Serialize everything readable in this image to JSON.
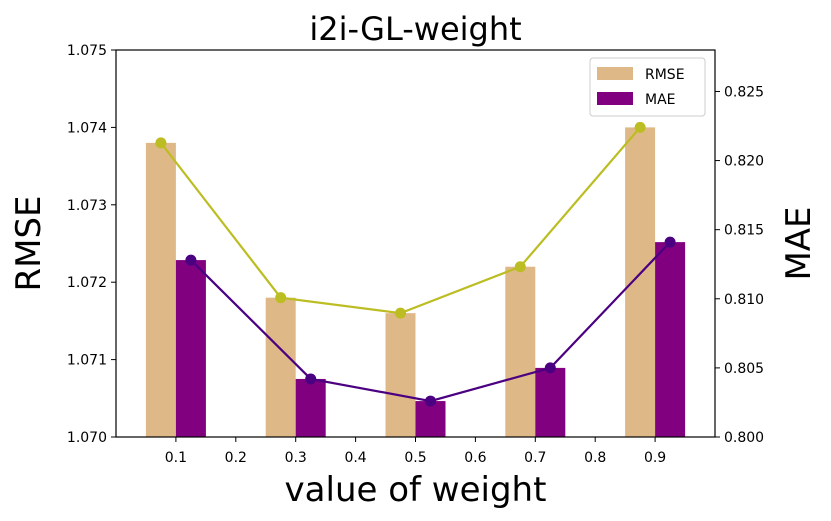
{
  "chart_data": {
    "type": "bar",
    "title": "i2i-GL-weight",
    "xlabel": "value of weight",
    "ylabel": "RMSE",
    "ylabel_right": "MAE",
    "xlim": [
      0.0,
      1.0
    ],
    "xticks": [
      0.1,
      0.2,
      0.3,
      0.4,
      0.5,
      0.6,
      0.7,
      0.8,
      0.9
    ],
    "xtick_labels": [
      "0.1",
      "0.2",
      "0.3",
      "0.4",
      "0.5",
      "0.6",
      "0.7",
      "0.8",
      "0.9"
    ],
    "ylim": [
      1.07,
      1.075
    ],
    "yticks": [
      1.07,
      1.071,
      1.072,
      1.073,
      1.074,
      1.075
    ],
    "ytick_labels": [
      "1.070",
      "1.071",
      "1.072",
      "1.073",
      "1.074",
      "1.075"
    ],
    "ylim_right": [
      0.8,
      0.828
    ],
    "yticks_right": [
      0.8,
      0.805,
      0.81,
      0.815,
      0.82,
      0.825
    ],
    "ytick_labels_right": [
      "0.800",
      "0.805",
      "0.810",
      "0.815",
      "0.820",
      "0.825"
    ],
    "categories": [
      0.1,
      0.3,
      0.5,
      0.7,
      0.9
    ],
    "series": [
      {
        "name": "RMSE",
        "axis": "left",
        "bar_color": "#deb887",
        "line_color": "#bcbd22",
        "values": [
          1.0738,
          1.0718,
          1.0716,
          1.0722,
          1.074
        ]
      },
      {
        "name": "MAE",
        "axis": "right",
        "bar_color": "#800080",
        "line_color": "#4b0082",
        "values": [
          0.8128,
          0.8042,
          0.8026,
          0.805,
          0.8141
        ]
      }
    ],
    "legend": {
      "position": "top-right",
      "entries": [
        "RMSE",
        "MAE"
      ]
    },
    "grid": false
  }
}
